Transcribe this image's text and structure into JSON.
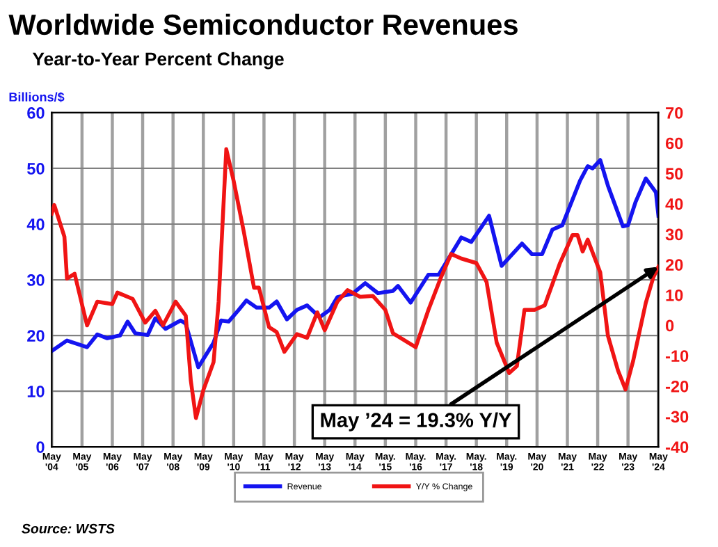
{
  "chart_data": {
    "type": "line",
    "title": "Worldwide Semiconductor Revenues",
    "subtitle": "Year-to-Year Percent Change",
    "ylabel": "Billions/$",
    "xlim": [
      "2004-05",
      "2024-05"
    ],
    "xticks": [
      {
        "value": "2004-05",
        "label": "May\n'04"
      },
      {
        "value": "2005-05",
        "label": "May\n'05"
      },
      {
        "value": "2006-05",
        "label": "May\n'06"
      },
      {
        "value": "2007-05",
        "label": "May\n'07"
      },
      {
        "value": "2008-05",
        "label": "May\n'08"
      },
      {
        "value": "2009-05",
        "label": "May\n'09"
      },
      {
        "value": "2010-05",
        "label": "May\n'10"
      },
      {
        "value": "2011-05",
        "label": "May\n'11"
      },
      {
        "value": "2012-05",
        "label": "May\n'12"
      },
      {
        "value": "2013-05",
        "label": "May\n'13"
      },
      {
        "value": "2014-05",
        "label": "May\n'14"
      },
      {
        "value": "2015-05",
        "label": "May.\n'15"
      },
      {
        "value": "2016-05",
        "label": "May.\n'16"
      },
      {
        "value": "2017-05",
        "label": "May.\n'17"
      },
      {
        "value": "2018-05",
        "label": "May.\n'18"
      },
      {
        "value": "2019-05",
        "label": "May.\n'19"
      },
      {
        "value": "2020-05",
        "label": "May\n'20"
      },
      {
        "value": "2021-05",
        "label": "May\n'21"
      },
      {
        "value": "2022-05",
        "label": "May\n'22"
      },
      {
        "value": "2023-05",
        "label": "May\n'23"
      },
      {
        "value": "2024-05",
        "label": "May\n'24"
      }
    ],
    "ylim": [
      0,
      60
    ],
    "yticks": [
      0,
      10,
      20,
      30,
      40,
      50,
      60
    ],
    "y2lim": [
      -40,
      70
    ],
    "y2ticks": [
      -40,
      -30,
      -20,
      -10,
      0,
      10,
      20,
      30,
      40,
      50,
      60,
      70
    ],
    "grid": true,
    "legend": "bottom",
    "marker": "none",
    "line_style": "solid",
    "series": [
      {
        "name": "Revenue",
        "color": "#1414f0",
        "x": [
          "2004-05",
          "2004-11",
          "2005-07",
          "2005-11",
          "2006-03",
          "2006-08",
          "2006-11",
          "2007-02",
          "2007-07",
          "2007-10",
          "2008-02",
          "2008-08",
          "2008-10",
          "2009-03",
          "2009-09",
          "2009-12",
          "2010-03",
          "2010-07",
          "2010-10",
          "2011-02",
          "2011-07",
          "2011-10",
          "2012-02",
          "2012-06",
          "2012-10",
          "2013-03",
          "2013-07",
          "2013-10",
          "2014-04",
          "2014-09",
          "2015-02",
          "2015-08",
          "2015-10",
          "2016-03",
          "2016-10",
          "2017-02",
          "2017-11",
          "2018-03",
          "2018-10",
          "2019-03",
          "2019-11",
          "2020-03",
          "2020-07",
          "2020-11",
          "2021-03",
          "2021-10",
          "2022-01",
          "2022-03",
          "2022-06",
          "2022-09",
          "2023-03",
          "2023-05",
          "2023-08",
          "2023-12",
          "2024-04",
          "2024-05"
        ],
        "values": [
          17.2,
          19.1,
          17.9,
          20.2,
          19.5,
          20,
          22.5,
          20.4,
          20.1,
          23.1,
          21.2,
          22.7,
          22.1,
          14.3,
          18.7,
          22.7,
          22.5,
          24.6,
          26.3,
          25,
          25,
          26.1,
          22.9,
          24.6,
          25.4,
          23.3,
          24.6,
          26.9,
          27.5,
          29.4,
          27.6,
          28,
          28.9,
          25.9,
          30.9,
          30.9,
          37.6,
          36.8,
          41.5,
          32.5,
          36.5,
          34.6,
          34.6,
          39,
          39.8,
          47.8,
          50.4,
          50,
          51.5,
          46.9,
          39.6,
          39.8,
          44,
          48.2,
          45.7,
          41.5
        ]
      },
      {
        "name": "Y/Y % Change",
        "color": "#f01414",
        "axis": "y2",
        "x": [
          "2004-05",
          "2004-06",
          "2004-10",
          "2004-11",
          "2005-02",
          "2005-07",
          "2005-11",
          "2006-05",
          "2006-07",
          "2007-01",
          "2007-06",
          "2007-10",
          "2008-01",
          "2008-06",
          "2008-10",
          "2008-12",
          "2009-02",
          "2009-05",
          "2009-09",
          "2009-11",
          "2010-02",
          "2010-05",
          "2010-09",
          "2011-01",
          "2011-03",
          "2011-07",
          "2011-10",
          "2012-01",
          "2012-06",
          "2012-10",
          "2013-02",
          "2013-05",
          "2013-10",
          "2014-02",
          "2014-07",
          "2014-12",
          "2015-05",
          "2015-08",
          "2016-02",
          "2016-05",
          "2016-10",
          "2017-03",
          "2017-07",
          "2017-11",
          "2018-05",
          "2018-09",
          "2019-01",
          "2019-06",
          "2019-09",
          "2019-12",
          "2020-04",
          "2020-08",
          "2021-02",
          "2021-07",
          "2021-09",
          "2021-11",
          "2022-01",
          "2022-06",
          "2022-09",
          "2023-01",
          "2023-04",
          "2023-07",
          "2023-12",
          "2024-03",
          "2024-05"
        ],
        "values": [
          36.8,
          39.6,
          29.2,
          15.4,
          17,
          0,
          7.8,
          7,
          10.8,
          8.7,
          0.9,
          4.8,
          0,
          7.8,
          3.2,
          -18.2,
          -30.5,
          -21.3,
          -12.1,
          7.8,
          58,
          47.5,
          30.7,
          12.4,
          12.4,
          -0.6,
          -2.2,
          -8.7,
          -2.9,
          -4.1,
          4.3,
          -1.6,
          7.8,
          11.6,
          9.4,
          9.7,
          5.1,
          -2.6,
          -5.7,
          -7.2,
          5.1,
          15.8,
          23.5,
          22,
          20.5,
          14.3,
          -5.7,
          -15.7,
          -13.4,
          5.1,
          5.1,
          6.6,
          20.5,
          29.7,
          29.7,
          24.3,
          28.2,
          17.4,
          -3.4,
          -14.9,
          -21.1,
          -11.8,
          7.4,
          15.8,
          19.3
        ]
      }
    ],
    "annotations": [
      "May ’24 = 19.3% Y/Y",
      "Source: WSTS"
    ]
  }
}
